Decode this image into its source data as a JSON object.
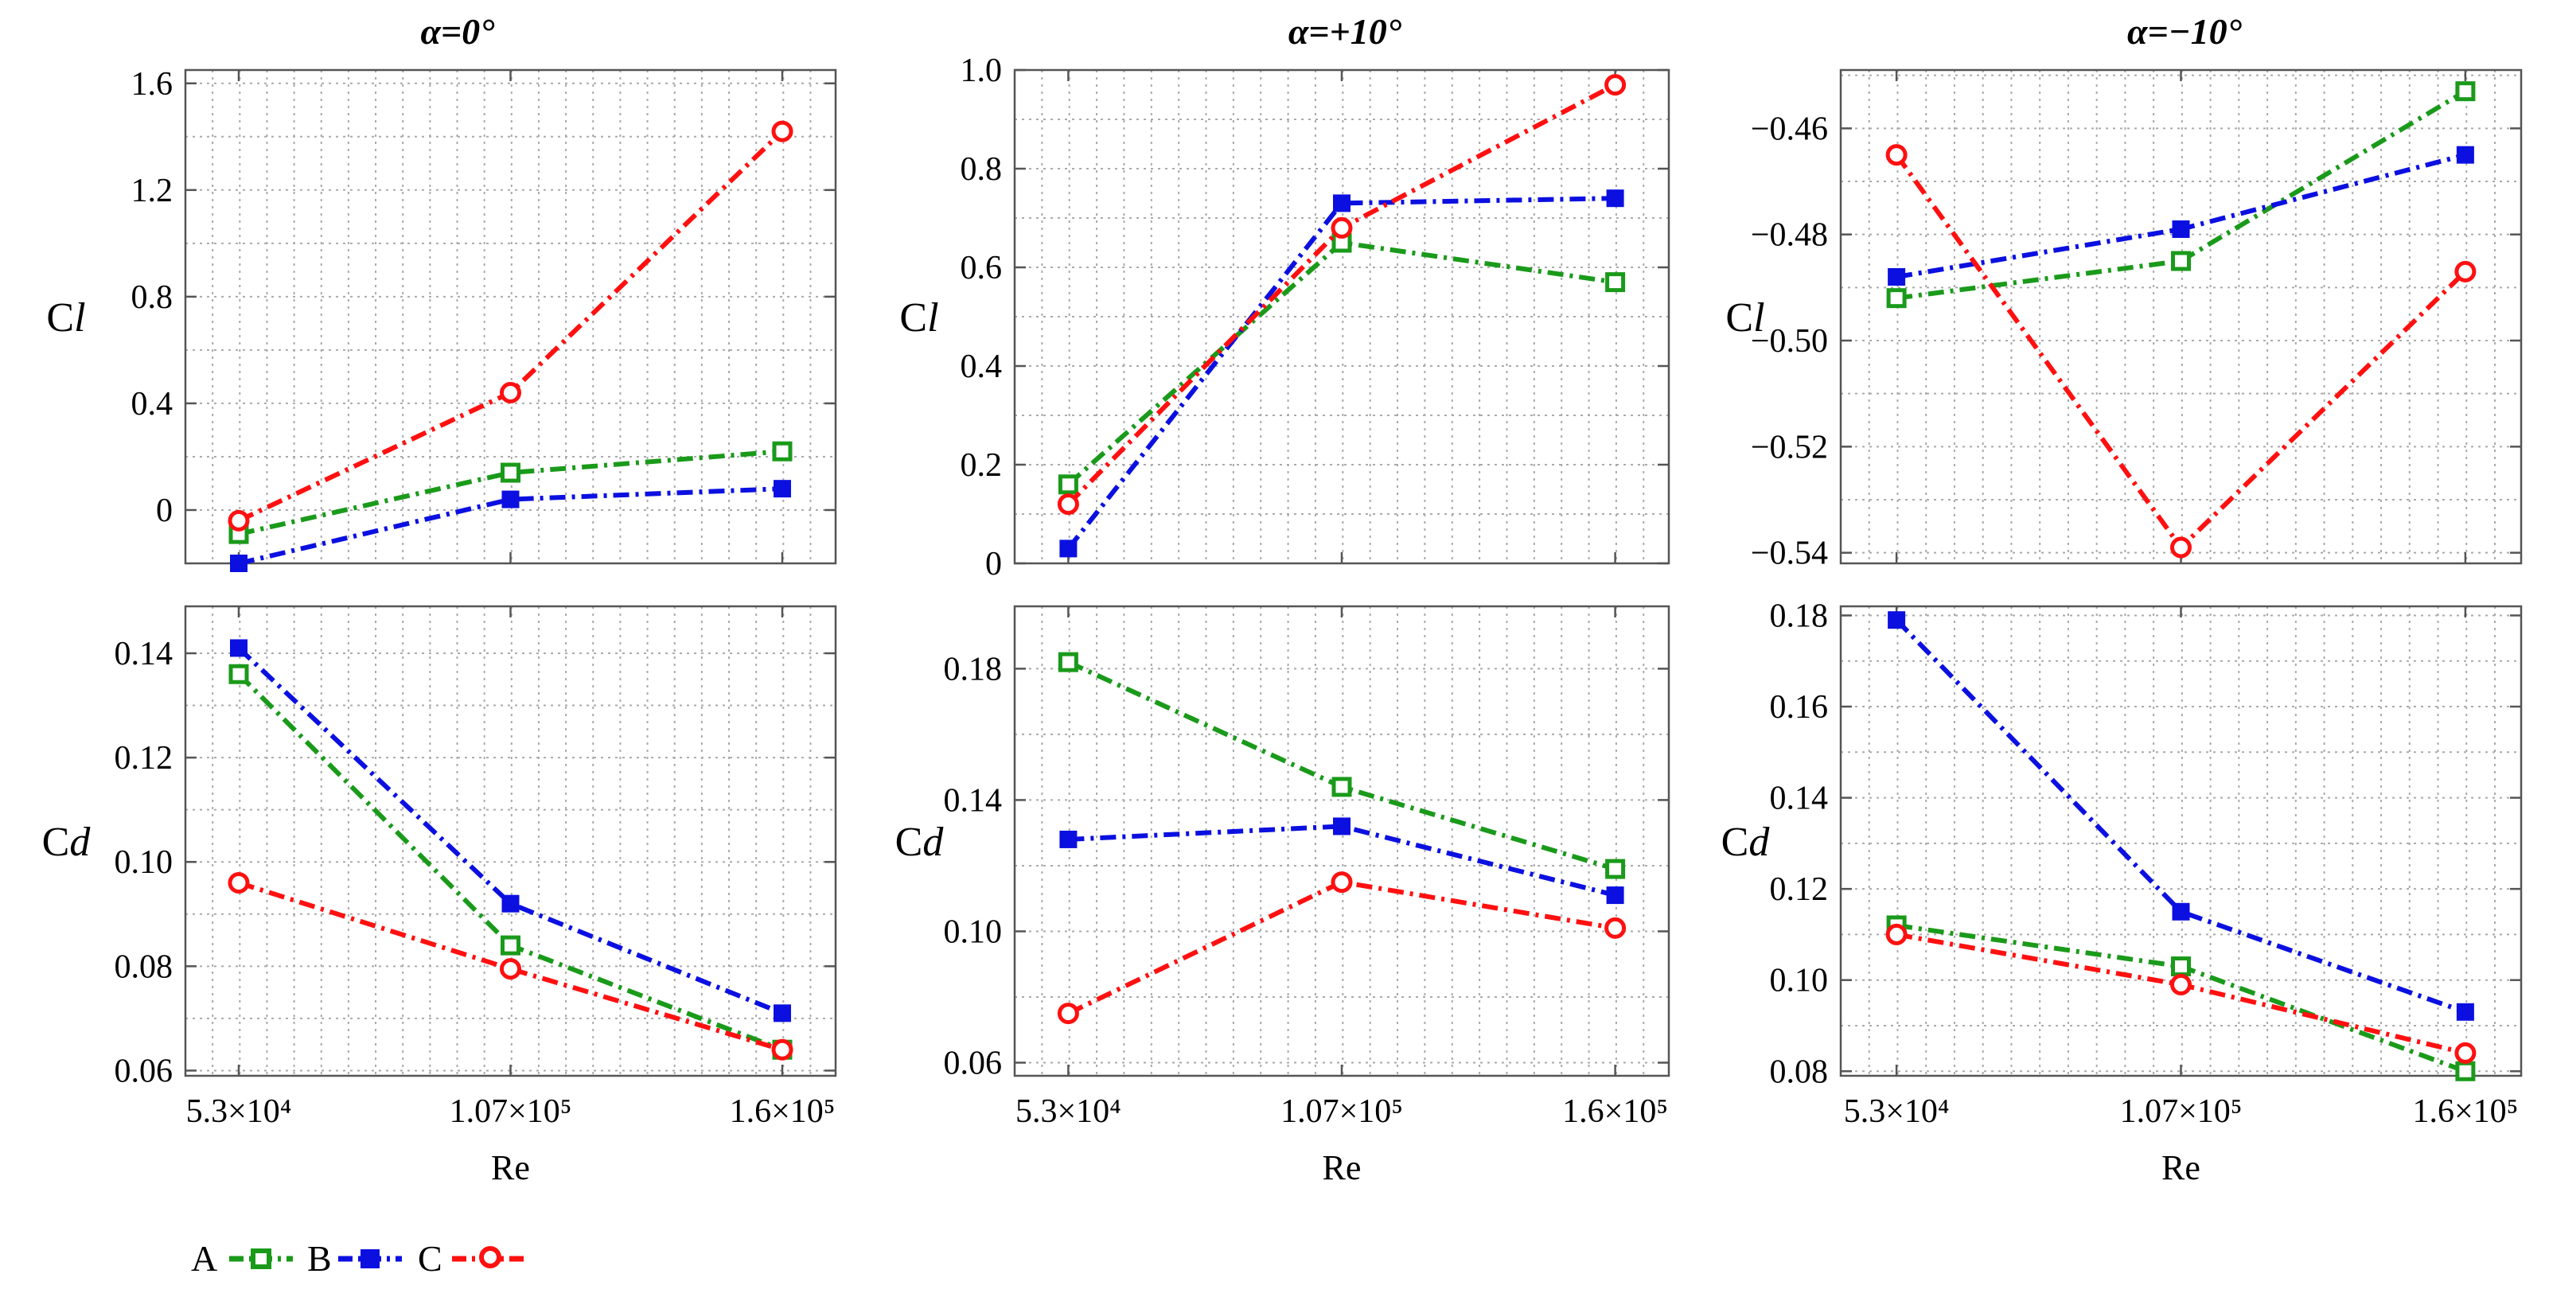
{
  "chart_data": [
    {
      "type": "line",
      "title": "α=0°",
      "ylabel": "Cl",
      "xlabel": "",
      "categories": [
        "5.3×10⁴",
        "1.07×10⁵",
        "1.6×10⁵"
      ],
      "ylim": [
        -0.2,
        1.65
      ],
      "yticks": [
        0,
        0.4,
        0.8,
        1.2,
        1.6
      ],
      "ytick_labels": [
        "0",
        "0.4",
        "0.8",
        "1.2",
        "1.6"
      ],
      "series": [
        {
          "name": "A",
          "values": [
            -0.09,
            0.14,
            0.22
          ]
        },
        {
          "name": "B",
          "values": [
            -0.2,
            0.04,
            0.08
          ]
        },
        {
          "name": "C",
          "values": [
            -0.04,
            0.44,
            1.42
          ]
        }
      ]
    },
    {
      "type": "line",
      "title": "α=+10°",
      "ylabel": "Cl",
      "xlabel": "",
      "categories": [
        "5.3×10⁴",
        "1.07×10⁵",
        "1.6×10⁵"
      ],
      "ylim": [
        0,
        1.0
      ],
      "yticks": [
        0,
        0.2,
        0.4,
        0.6,
        0.8,
        1.0
      ],
      "ytick_labels": [
        "0",
        "0.2",
        "0.4",
        "0.6",
        "0.8",
        "1.0"
      ],
      "series": [
        {
          "name": "A",
          "values": [
            0.16,
            0.65,
            0.57
          ]
        },
        {
          "name": "B",
          "values": [
            0.03,
            0.73,
            0.74
          ]
        },
        {
          "name": "C",
          "values": [
            0.12,
            0.68,
            0.97
          ]
        }
      ]
    },
    {
      "type": "line",
      "title": "α=−10°",
      "ylabel": "Cl",
      "xlabel": "",
      "categories": [
        "5.3×10⁴",
        "1.07×10⁵",
        "1.6×10⁵"
      ],
      "ylim": [
        -0.542,
        -0.449
      ],
      "yticks": [
        -0.54,
        -0.52,
        -0.5,
        -0.48,
        -0.46
      ],
      "ytick_labels": [
        "−0.54",
        "−0.52",
        "−0.50",
        "−0.48",
        "−0.46"
      ],
      "series": [
        {
          "name": "A",
          "values": [
            -0.492,
            -0.485,
            -0.453
          ]
        },
        {
          "name": "B",
          "values": [
            -0.488,
            -0.479,
            -0.465
          ]
        },
        {
          "name": "C",
          "values": [
            -0.465,
            -0.539,
            -0.487
          ]
        }
      ]
    },
    {
      "type": "line",
      "title": "",
      "ylabel": "Cd",
      "xlabel": "Re",
      "categories": [
        "5.3×10⁴",
        "1.07×10⁵",
        "1.6×10⁵"
      ],
      "ylim": [
        0.059,
        0.149
      ],
      "yticks": [
        0.06,
        0.08,
        0.1,
        0.12,
        0.14
      ],
      "ytick_labels": [
        "0.06",
        "0.08",
        "0.10",
        "0.12",
        "0.14"
      ],
      "series": [
        {
          "name": "A",
          "values": [
            0.136,
            0.084,
            0.064
          ]
        },
        {
          "name": "B",
          "values": [
            0.141,
            0.092,
            0.071
          ]
        },
        {
          "name": "C",
          "values": [
            0.096,
            0.0795,
            0.064
          ]
        }
      ]
    },
    {
      "type": "line",
      "title": "",
      "ylabel": "Cd",
      "xlabel": "Re",
      "categories": [
        "5.3×10⁴",
        "1.07×10⁵",
        "1.6×10⁵"
      ],
      "ylim": [
        0.056,
        0.199
      ],
      "yticks": [
        0.06,
        0.1,
        0.14,
        0.18
      ],
      "ytick_labels": [
        "0.06",
        "0.10",
        "0.14",
        "0.18"
      ],
      "series": [
        {
          "name": "A",
          "values": [
            0.182,
            0.144,
            0.119
          ]
        },
        {
          "name": "B",
          "values": [
            0.128,
            0.132,
            0.111
          ]
        },
        {
          "name": "C",
          "values": [
            0.075,
            0.115,
            0.101
          ]
        }
      ]
    },
    {
      "type": "line",
      "title": "",
      "ylabel": "Cd",
      "xlabel": "Re",
      "categories": [
        "5.3×10⁴",
        "1.07×10⁵",
        "1.6×10⁵"
      ],
      "ylim": [
        0.079,
        0.182
      ],
      "yticks": [
        0.08,
        0.1,
        0.12,
        0.14,
        0.16,
        0.18
      ],
      "ytick_labels": [
        "0.08",
        "0.10",
        "0.12",
        "0.14",
        "0.16",
        "0.18"
      ],
      "series": [
        {
          "name": "A",
          "values": [
            0.112,
            0.103,
            0.08
          ]
        },
        {
          "name": "B",
          "values": [
            0.179,
            0.115,
            0.093
          ]
        },
        {
          "name": "C",
          "values": [
            0.11,
            0.099,
            0.084
          ]
        }
      ]
    }
  ],
  "legend": {
    "items": [
      {
        "label": "A",
        "color": "#1a9a1a",
        "marker": "open-square"
      },
      {
        "label": "B",
        "color": "#0b10e0",
        "marker": "filled-square"
      },
      {
        "label": "C",
        "color": "#ff1010",
        "marker": "open-circle"
      }
    ]
  },
  "colors": {
    "A": "#1a9a1a",
    "B": "#0b10e0",
    "C": "#ff1010",
    "grid": "#aaaaaa",
    "frame": "#555555"
  }
}
